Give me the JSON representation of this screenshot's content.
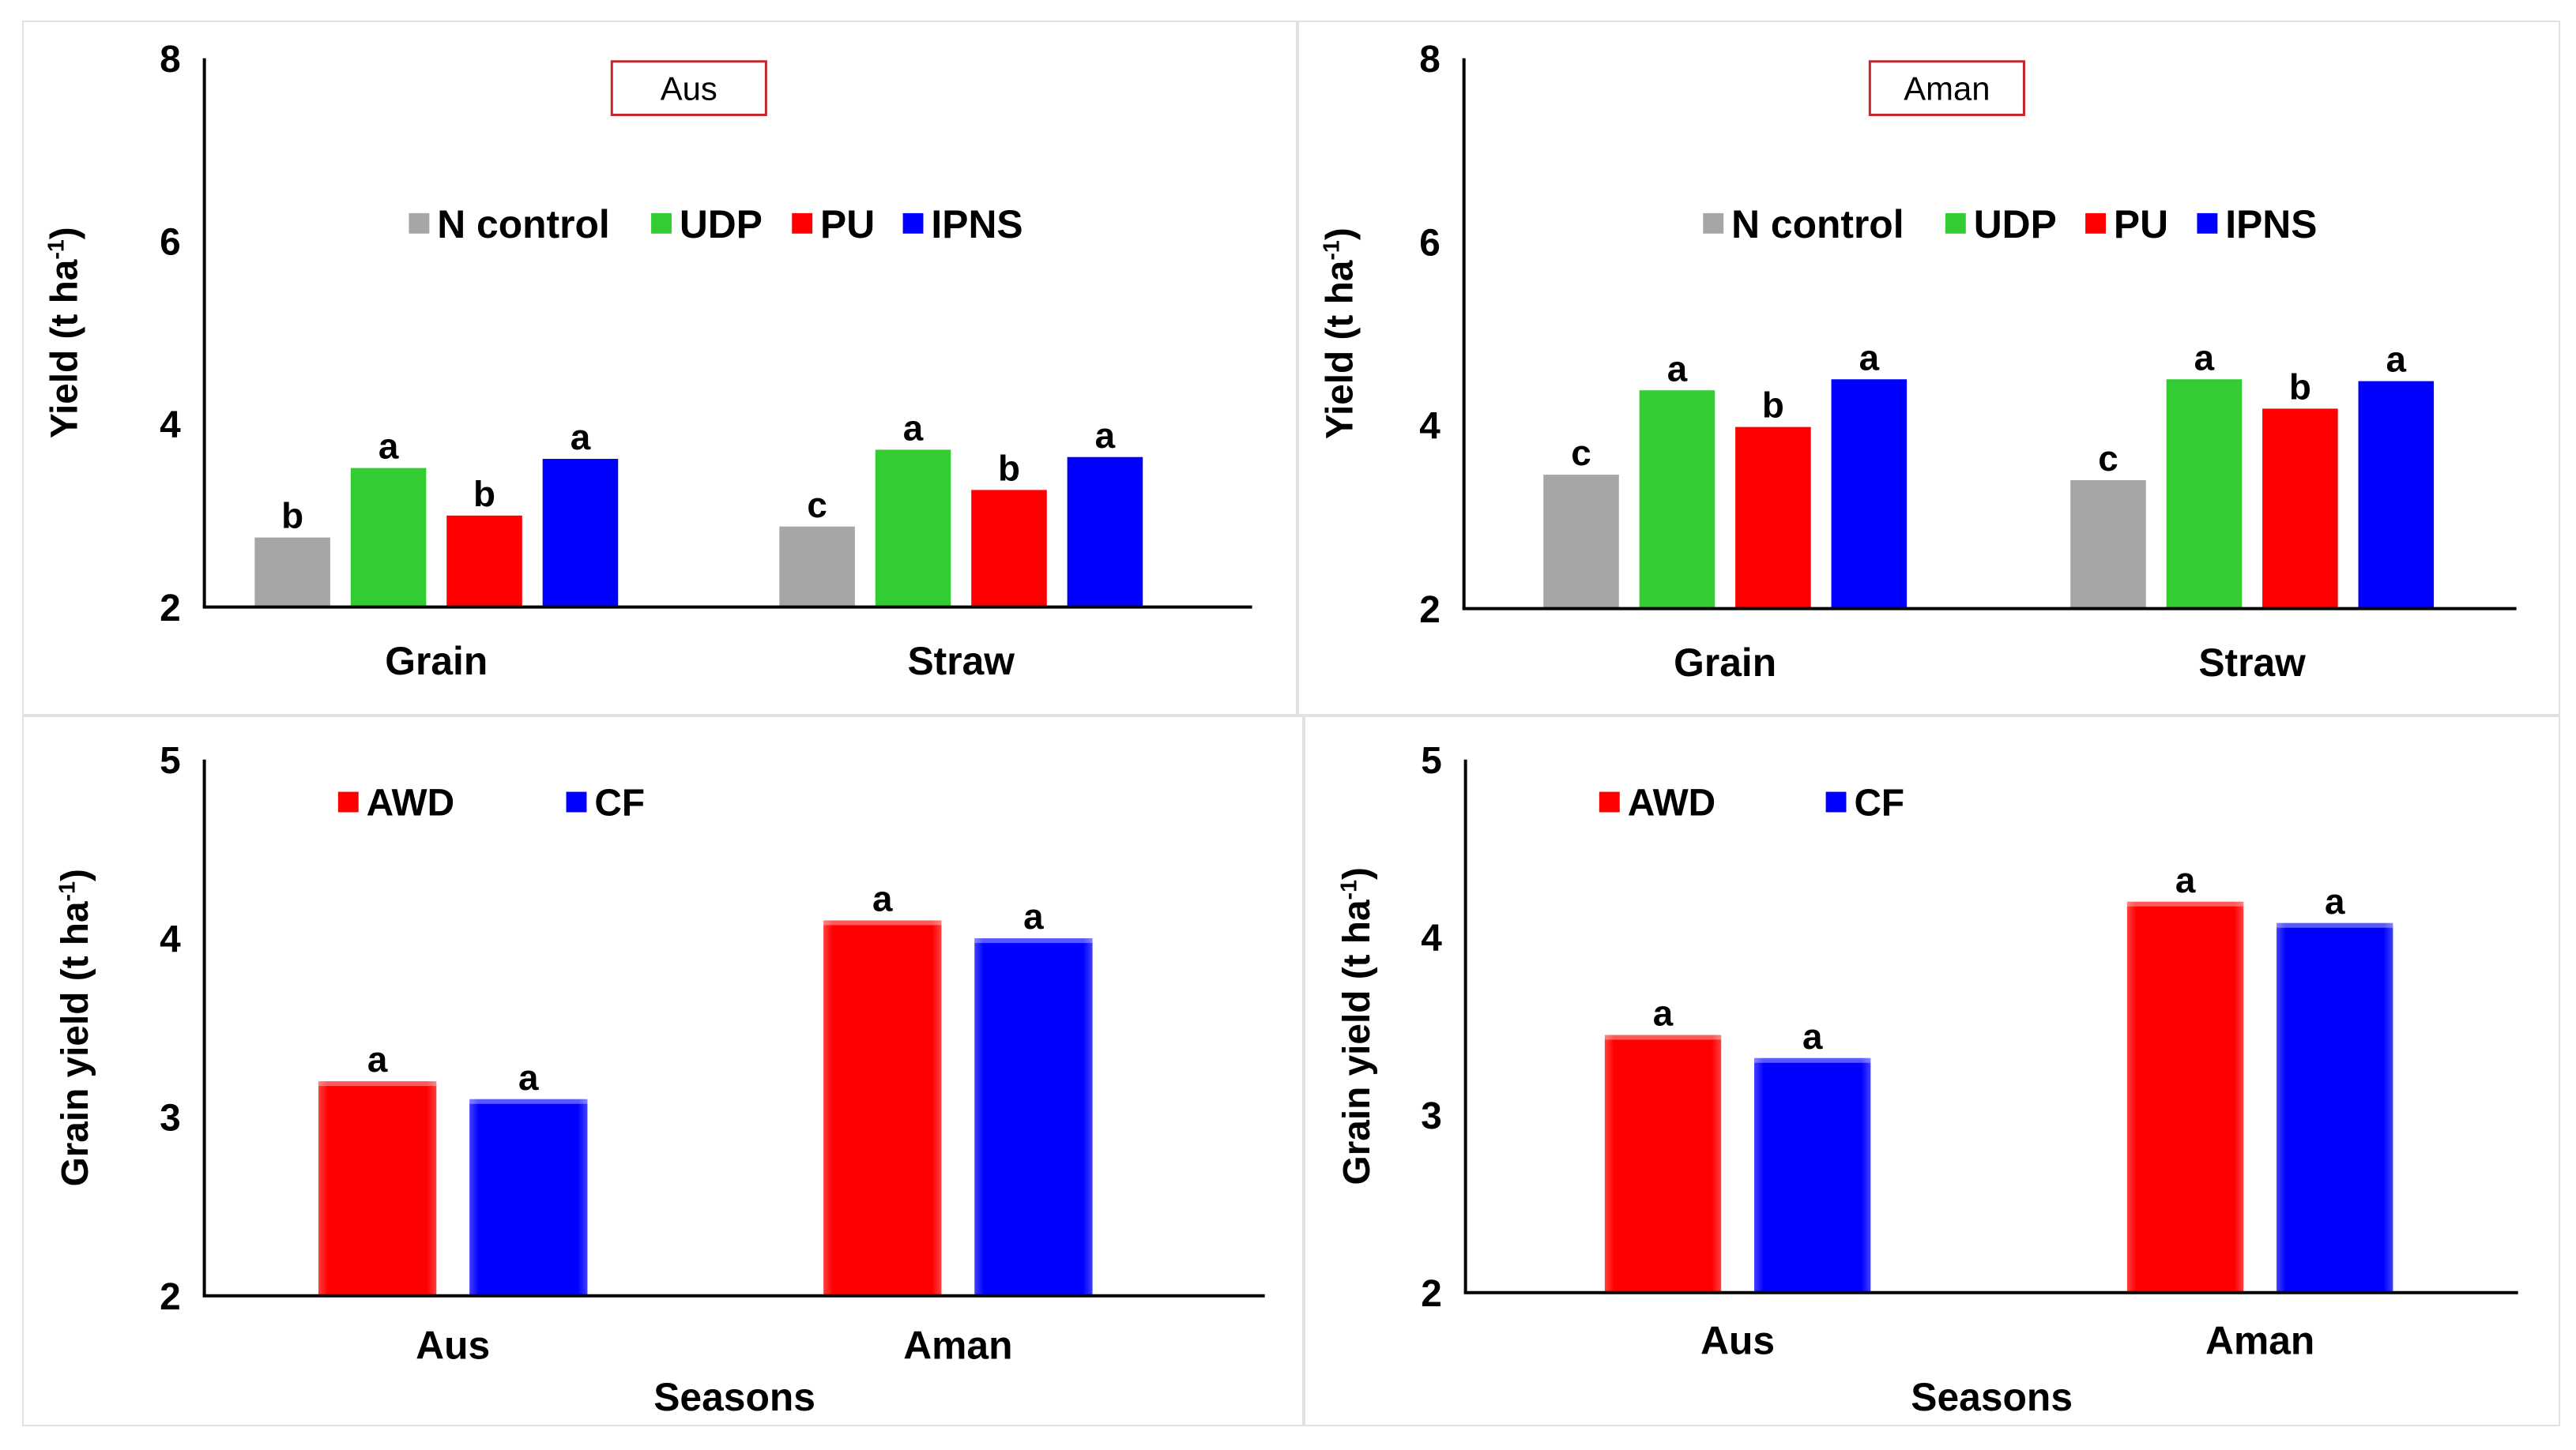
{
  "chart_data": [
    {
      "type": "bar",
      "title": "Aus",
      "ylabel": "Yield (t ha",
      "ylabel_sup": "-1",
      "ylabel_close": ")",
      "xlabel": "",
      "ylim": [
        2,
        8
      ],
      "yticks": [
        "2",
        "4",
        "6",
        "8"
      ],
      "categories": [
        "Grain",
        "Straw"
      ],
      "series": [
        {
          "name": "N control",
          "color": "#a6a6a6",
          "values": [
            2.76,
            2.88
          ],
          "letters": [
            "b",
            "c"
          ]
        },
        {
          "name": "UDP",
          "color": "#33cc33",
          "values": [
            3.52,
            3.72
          ],
          "letters": [
            "a",
            "a"
          ]
        },
        {
          "name": "PU",
          "color": "#ff0000",
          "values": [
            3.0,
            3.28
          ],
          "letters": [
            "b",
            "b"
          ]
        },
        {
          "name": "IPNS",
          "color": "#0000ff",
          "values": [
            3.62,
            3.64
          ],
          "letters": [
            "a",
            "a"
          ]
        }
      ]
    },
    {
      "type": "bar",
      "title": "Aman",
      "ylabel": "Yield (t ha",
      "ylabel_sup": "-1",
      "ylabel_close": ")",
      "xlabel": "",
      "ylim": [
        2,
        8
      ],
      "yticks": [
        "2",
        "4",
        "6",
        "8"
      ],
      "categories": [
        "Grain",
        "Straw"
      ],
      "series": [
        {
          "name": "N control",
          "color": "#a6a6a6",
          "values": [
            3.46,
            3.4
          ],
          "letters": [
            "c",
            "c"
          ]
        },
        {
          "name": "UDP",
          "color": "#33cc33",
          "values": [
            4.38,
            4.5
          ],
          "letters": [
            "a",
            "a"
          ]
        },
        {
          "name": "PU",
          "color": "#ff0000",
          "values": [
            3.98,
            4.18
          ],
          "letters": [
            "b",
            "b"
          ]
        },
        {
          "name": "IPNS",
          "color": "#0000ff",
          "values": [
            4.5,
            4.48
          ],
          "letters": [
            "a",
            "a"
          ]
        }
      ]
    },
    {
      "type": "bar",
      "title": "",
      "ylabel": "Grain yield (t ha",
      "ylabel_sup": "-1",
      "ylabel_close": ")",
      "xlabel": "Seasons",
      "ylim": [
        2,
        5
      ],
      "yticks": [
        "2",
        "3",
        "4",
        "5"
      ],
      "categories": [
        "Aus",
        "Aman"
      ],
      "series": [
        {
          "name": "AWD",
          "color": "#ff0000",
          "values": [
            3.2,
            4.1
          ],
          "letters": [
            "a",
            "a"
          ]
        },
        {
          "name": "CF",
          "color": "#0000ff",
          "values": [
            3.1,
            4.0
          ],
          "letters": [
            "a",
            "a"
          ]
        }
      ]
    },
    {
      "type": "bar",
      "title": "",
      "ylabel": "Grain yield (t ha",
      "ylabel_sup": "-1",
      "ylabel_close": ")",
      "xlabel": "Seasons",
      "ylim": [
        2,
        5
      ],
      "yticks": [
        "2",
        "3",
        "4",
        "5"
      ],
      "categories": [
        "Aus",
        "Aman"
      ],
      "series": [
        {
          "name": "AWD",
          "color": "#ff0000",
          "values": [
            3.45,
            4.2
          ],
          "letters": [
            "a",
            "a"
          ]
        },
        {
          "name": "CF",
          "color": "#0000ff",
          "values": [
            3.32,
            4.08
          ],
          "letters": [
            "a",
            "a"
          ]
        }
      ]
    }
  ]
}
